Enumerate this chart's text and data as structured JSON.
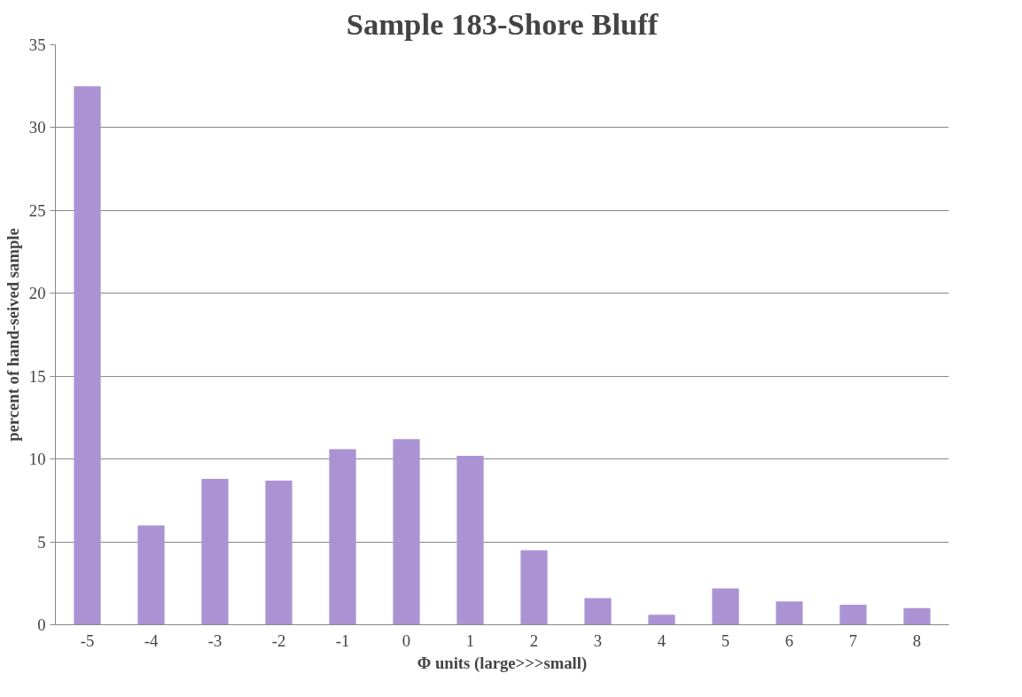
{
  "chart_data": {
    "type": "bar",
    "title": "Sample 183-Shore Bluff",
    "xlabel": "Φ units (large>>>small)",
    "ylabel": "percent of hand-seived sample",
    "categories": [
      "-5",
      "-4",
      "-3",
      "-2",
      "-1",
      "0",
      "1",
      "2",
      "3",
      "4",
      "5",
      "6",
      "7",
      "8"
    ],
    "values": [
      32.5,
      6.0,
      8.8,
      8.7,
      10.6,
      11.2,
      10.2,
      4.5,
      1.6,
      0.6,
      2.2,
      1.4,
      1.2,
      1.0
    ],
    "color": "#ab93d3",
    "ylim": [
      0,
      35
    ],
    "yticks": [
      0,
      5,
      10,
      15,
      20,
      25,
      30,
      35
    ],
    "grid": "y"
  }
}
